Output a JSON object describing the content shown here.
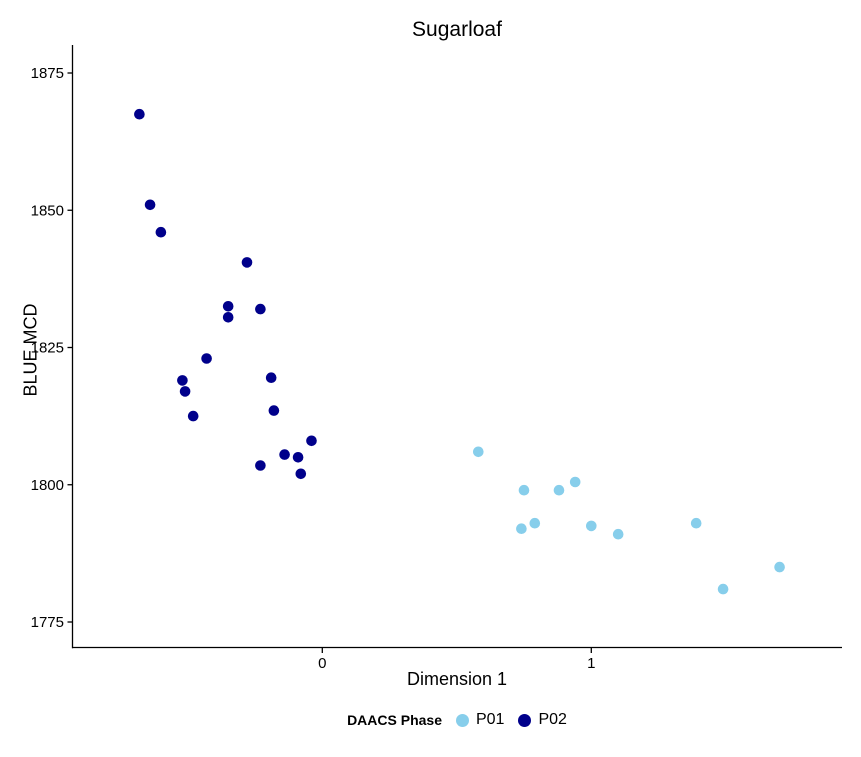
{
  "chart_data": {
    "type": "scatter",
    "title": "Sugarloaf",
    "xlabel": "Dimension 1",
    "ylabel": "BLUE MCD",
    "legend_title": "DAACS Phase",
    "legend_position": "bottom",
    "grid": false,
    "background_color": "#FFFFFF",
    "axis_color": "#000000",
    "text_color": "#000000",
    "x_ticks": [
      0,
      1
    ],
    "y_ticks": [
      1775,
      1800,
      1825,
      1850,
      1875
    ],
    "xlim": [
      -0.93,
      1.93
    ],
    "ylim": [
      1770.5,
      1880
    ],
    "series": [
      {
        "name": "P01",
        "color": "#87CEEB",
        "points": [
          [
            0.58,
            1806
          ],
          [
            0.74,
            1792
          ],
          [
            0.75,
            1799
          ],
          [
            0.79,
            1793
          ],
          [
            0.88,
            1799
          ],
          [
            0.94,
            1800.5
          ],
          [
            1.0,
            1792.5
          ],
          [
            1.1,
            1791
          ],
          [
            1.39,
            1793
          ],
          [
            1.49,
            1781
          ],
          [
            1.7,
            1785
          ]
        ]
      },
      {
        "name": "P02",
        "color": "#00008B",
        "points": [
          [
            -0.68,
            1867.5
          ],
          [
            -0.64,
            1851
          ],
          [
            -0.6,
            1846
          ],
          [
            -0.52,
            1819
          ],
          [
            -0.51,
            1817
          ],
          [
            -0.48,
            1812.5
          ],
          [
            -0.43,
            1823
          ],
          [
            -0.35,
            1832.5
          ],
          [
            -0.35,
            1830.5
          ],
          [
            -0.28,
            1840.5
          ],
          [
            -0.23,
            1832
          ],
          [
            -0.23,
            1803.5
          ],
          [
            -0.19,
            1819.5
          ],
          [
            -0.18,
            1813.5
          ],
          [
            -0.14,
            1805.5
          ],
          [
            -0.09,
            1805
          ],
          [
            -0.08,
            1802
          ],
          [
            -0.04,
            1808
          ]
        ]
      }
    ]
  }
}
